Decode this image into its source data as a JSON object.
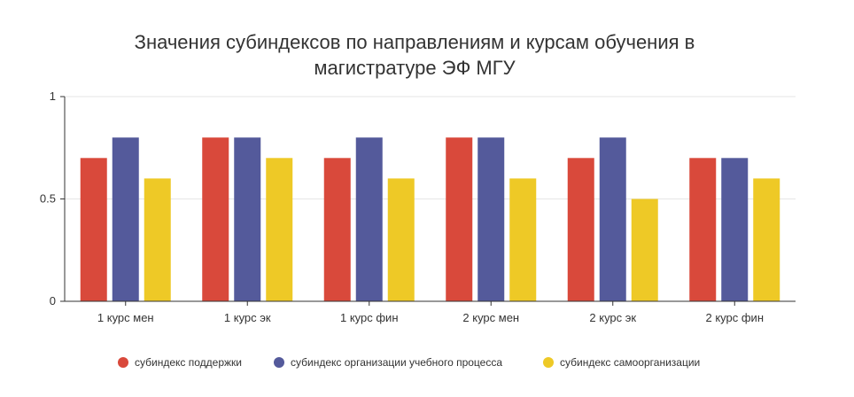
{
  "chart_data": {
    "type": "bar",
    "title_lines": [
      "Значения субиндексов по направлениям и курсам обучения в",
      "магистратуре ЭФ МГУ"
    ],
    "xlabel": "",
    "ylabel": "",
    "ylim": [
      0,
      1
    ],
    "yticks": [
      {
        "value": 0,
        "label": "0"
      },
      {
        "value": 0.5,
        "label": "0.5"
      },
      {
        "value": 1,
        "label": "1"
      }
    ],
    "grid": true,
    "legend_position": "bottom",
    "categories": [
      "1 курс мен",
      "1 курс эк",
      "1 курс фин",
      "2 курс мен",
      "2 курс эк",
      "2 курс фин"
    ],
    "series": [
      {
        "name": "субиндекс поддержки",
        "color": "#d9493b",
        "values": [
          0.7,
          0.8,
          0.7,
          0.8,
          0.7,
          0.7
        ]
      },
      {
        "name": "субиндекс организации учебного процесса",
        "color": "#545a9b",
        "values": [
          0.8,
          0.8,
          0.8,
          0.8,
          0.8,
          0.7
        ]
      },
      {
        "name": "субиндекс самоорганизации",
        "color": "#eec926",
        "values": [
          0.6,
          0.7,
          0.6,
          0.6,
          0.5,
          0.6
        ]
      }
    ]
  }
}
